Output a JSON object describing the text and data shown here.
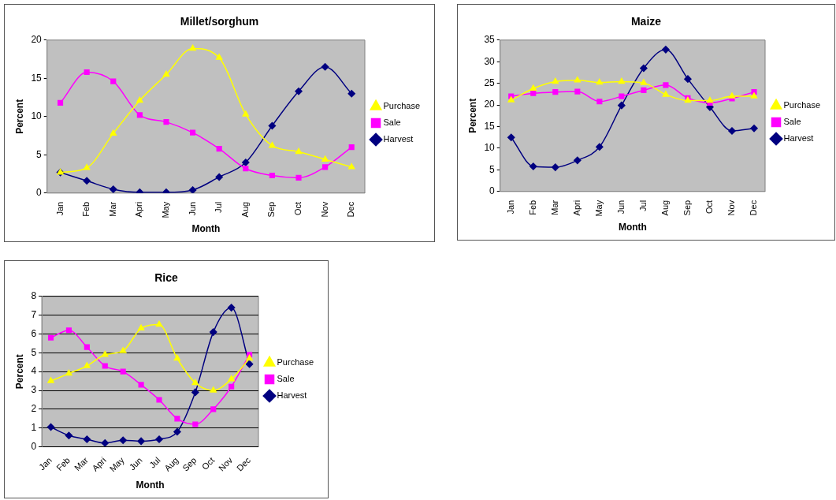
{
  "chart_data": [
    {
      "type": "line",
      "title": "Millet/sorghum",
      "xlabel": "Month",
      "ylabel": "Percent",
      "categories": [
        "Jan",
        "Feb",
        "Mar",
        "Apri",
        "May",
        "Jun",
        "Jul",
        "Aug",
        "Sep",
        "Oct",
        "Nov",
        "Dec"
      ],
      "ylim": [
        0,
        20
      ],
      "yticks": [
        0,
        5,
        10,
        15,
        20
      ],
      "grid": false,
      "legend": "right",
      "series": [
        {
          "name": "Harvest",
          "color": "#000080",
          "marker": "diamond",
          "values": [
            2.7,
            1.6,
            0.5,
            0.1,
            0.1,
            0.4,
            2.1,
            4,
            8.8,
            13.3,
            16.5,
            13
          ]
        },
        {
          "name": "Sale",
          "color": "#ff00ff",
          "marker": "square",
          "values": [
            11.8,
            15.8,
            14.6,
            10.2,
            9.3,
            7.9,
            5.8,
            3.2,
            2.3,
            2,
            3.4,
            6
          ]
        },
        {
          "name": "Purchase",
          "color": "#ffff00",
          "marker": "triangle",
          "values": [
            2.7,
            3.3,
            7.8,
            12.1,
            15.5,
            18.9,
            17.7,
            10.3,
            6.2,
            5.4,
            4.4,
            3.4
          ]
        }
      ]
    },
    {
      "type": "line",
      "title": "Maize",
      "xlabel": "Month",
      "ylabel": "Percent",
      "categories": [
        "Jan",
        "Feb",
        "Mar",
        "Apri",
        "May",
        "Jun",
        "Jul",
        "Aug",
        "Sep",
        "Oct",
        "Nov",
        "Dec"
      ],
      "ylim": [
        0,
        35
      ],
      "yticks": [
        0,
        5,
        10,
        15,
        20,
        25,
        30,
        35
      ],
      "grid": false,
      "legend": "right",
      "series": [
        {
          "name": "Harvest",
          "color": "#000080",
          "marker": "diamond",
          "values": [
            12.5,
            5.8,
            5.6,
            7.2,
            10.3,
            19.9,
            28.5,
            32.8,
            26,
            19.5,
            14,
            14.6
          ]
        },
        {
          "name": "Sale",
          "color": "#ff00ff",
          "marker": "square",
          "values": [
            22,
            22.7,
            23,
            23.1,
            20.8,
            22,
            23.4,
            24.6,
            21.6,
            20.5,
            21.5,
            23
          ]
        },
        {
          "name": "Purchase",
          "color": "#ffff00",
          "marker": "triangle",
          "values": [
            21.1,
            23.8,
            25.4,
            25.7,
            25.2,
            25.4,
            25.1,
            22.4,
            21,
            21,
            22,
            22
          ]
        }
      ]
    },
    {
      "type": "line",
      "title": "Rice",
      "xlabel": "Month",
      "ylabel": "Percent",
      "categories": [
        "Jan",
        "Feb",
        "Mar",
        "Apri",
        "May",
        "Jun",
        "Jul",
        "Aug",
        "Sep",
        "Oct",
        "Nov",
        "Dec"
      ],
      "ylim": [
        0,
        8
      ],
      "yticks": [
        0,
        1,
        2,
        3,
        4,
        5,
        6,
        7,
        8
      ],
      "grid": "y",
      "legend": "right",
      "series": [
        {
          "name": "Harvest",
          "color": "#000080",
          "marker": "diamond",
          "values": [
            1.05,
            0.6,
            0.4,
            0.2,
            0.35,
            0.3,
            0.4,
            0.8,
            2.9,
            6.1,
            7.4,
            4.4
          ]
        },
        {
          "name": "Sale",
          "color": "#ff00ff",
          "marker": "square",
          "values": [
            5.8,
            6.2,
            5.3,
            4.3,
            4,
            3.3,
            2.5,
            1.5,
            1.2,
            2,
            3.2,
            4.9
          ]
        },
        {
          "name": "Purchase",
          "color": "#ffff00",
          "marker": "triangle",
          "values": [
            3.5,
            3.9,
            4.3,
            4.9,
            5.1,
            6.3,
            6.5,
            4.7,
            3.4,
            3,
            3.6,
            4.7
          ]
        }
      ]
    }
  ]
}
